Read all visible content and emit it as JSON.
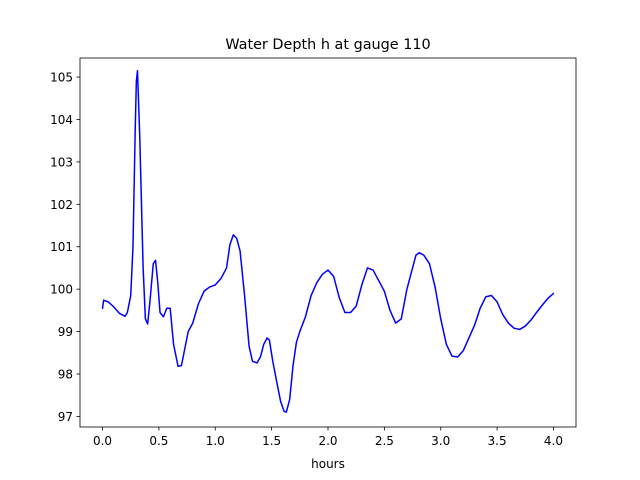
{
  "chart_data": {
    "type": "line",
    "title": "Water Depth h at gauge 110",
    "xlabel": "hours",
    "ylabel": "",
    "xlim": [
      -0.2,
      4.2
    ],
    "ylim": [
      96.75,
      105.45
    ],
    "xticks": [
      0.0,
      0.5,
      1.0,
      1.5,
      2.0,
      2.5,
      3.0,
      3.5,
      4.0
    ],
    "xtick_labels": [
      "0.0",
      "0.5",
      "1.0",
      "1.5",
      "2.0",
      "2.5",
      "3.0",
      "3.5",
      "4.0"
    ],
    "yticks": [
      97,
      98,
      99,
      100,
      101,
      102,
      103,
      104,
      105
    ],
    "ytick_labels": [
      "97",
      "98",
      "99",
      "100",
      "101",
      "102",
      "103",
      "104",
      "105"
    ],
    "grid": false,
    "legend": "none",
    "series": [
      {
        "color": "#0000ff",
        "x": [
          0.0,
          0.01,
          0.05,
          0.1,
          0.15,
          0.2,
          0.22,
          0.25,
          0.27,
          0.29,
          0.3,
          0.31,
          0.33,
          0.36,
          0.38,
          0.4,
          0.42,
          0.45,
          0.47,
          0.49,
          0.51,
          0.54,
          0.57,
          0.6,
          0.63,
          0.67,
          0.7,
          0.73,
          0.76,
          0.8,
          0.85,
          0.9,
          0.95,
          1.0,
          1.05,
          1.1,
          1.13,
          1.16,
          1.19,
          1.22,
          1.26,
          1.3,
          1.33,
          1.37,
          1.4,
          1.43,
          1.46,
          1.48,
          1.51,
          1.55,
          1.58,
          1.61,
          1.63,
          1.66,
          1.69,
          1.72,
          1.75,
          1.8,
          1.85,
          1.9,
          1.95,
          2.0,
          2.05,
          2.1,
          2.15,
          2.2,
          2.25,
          2.3,
          2.35,
          2.4,
          2.45,
          2.5,
          2.55,
          2.6,
          2.65,
          2.7,
          2.75,
          2.78,
          2.81,
          2.85,
          2.9,
          2.95,
          3.0,
          3.05,
          3.1,
          3.15,
          3.2,
          3.25,
          3.3,
          3.35,
          3.4,
          3.45,
          3.5,
          3.55,
          3.6,
          3.65,
          3.7,
          3.75,
          3.8,
          3.85,
          3.9,
          3.95,
          4.0
        ],
        "y": [
          99.55,
          99.74,
          99.7,
          99.58,
          99.43,
          99.36,
          99.45,
          99.85,
          101.0,
          103.8,
          104.9,
          105.15,
          103.6,
          100.5,
          99.3,
          99.18,
          99.7,
          100.6,
          100.68,
          100.15,
          99.45,
          99.35,
          99.55,
          99.55,
          98.7,
          98.18,
          98.2,
          98.6,
          99.0,
          99.2,
          99.65,
          99.95,
          100.05,
          100.1,
          100.25,
          100.5,
          101.05,
          101.28,
          101.2,
          100.9,
          99.85,
          98.65,
          98.3,
          98.26,
          98.4,
          98.7,
          98.85,
          98.8,
          98.3,
          97.75,
          97.35,
          97.12,
          97.1,
          97.4,
          98.2,
          98.75,
          99.0,
          99.35,
          99.85,
          100.15,
          100.35,
          100.45,
          100.3,
          99.8,
          99.45,
          99.45,
          99.6,
          100.1,
          100.5,
          100.45,
          100.2,
          99.95,
          99.5,
          99.2,
          99.3,
          100.0,
          100.5,
          100.8,
          100.86,
          100.8,
          100.6,
          100.05,
          99.3,
          98.7,
          98.42,
          98.4,
          98.55,
          98.85,
          99.15,
          99.55,
          99.82,
          99.85,
          99.7,
          99.4,
          99.2,
          99.08,
          99.05,
          99.13,
          99.27,
          99.45,
          99.62,
          99.78,
          99.9
        ]
      }
    ]
  }
}
